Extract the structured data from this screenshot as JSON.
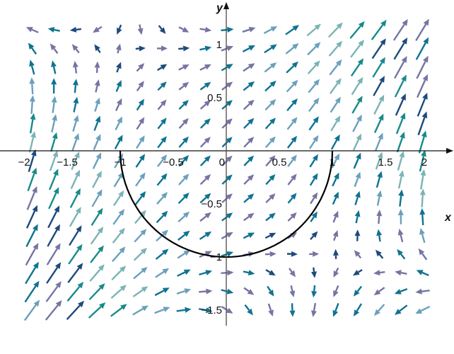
{
  "chart_data": {
    "type": "vector-field",
    "xlabel": "x",
    "ylabel": "y",
    "xlim": [
      -2.1,
      2.13
    ],
    "ylim": [
      -1.65,
      1.4
    ],
    "x_ticks": [
      {
        "value": -2,
        "label": "−2"
      },
      {
        "value": -1.5,
        "label": "−1.5"
      },
      {
        "value": -1,
        "label": "−1"
      },
      {
        "value": -0.5,
        "label": "−0.5"
      },
      {
        "value": 0,
        "label": "0"
      },
      {
        "value": 0.5,
        "label": "0.5"
      },
      {
        "value": 1,
        "label": "1"
      },
      {
        "value": 1.5,
        "label": "1.5"
      },
      {
        "value": 2,
        "label": "2"
      }
    ],
    "y_ticks": [
      {
        "value": 1,
        "label": "1"
      },
      {
        "value": 0.5,
        "label": "0.5"
      },
      {
        "value": -0.5,
        "label": "−0.5"
      },
      {
        "value": -1,
        "label": "−1"
      },
      {
        "value": -1.5,
        "label": "−1.5"
      }
    ],
    "field": {
      "u": "1 + x*y",
      "v": "1 + 0.8*x^2 - 0.7*y^2 + 1.1*x*y",
      "sample_x": {
        "start": -1.83,
        "end": 1.85,
        "count": 19
      },
      "sample_y": {
        "start": 1.14,
        "end": -1.5,
        "count": 16
      }
    },
    "curve": {
      "description_equation": "x^2 + y^2 = 1, y <= 0",
      "x_range": [
        -1,
        1
      ],
      "color": "#000000"
    },
    "colors": [
      "#1d4a7c",
      "#7474a4",
      "#0f7391",
      "#6aa0bc",
      "#7cb3b5",
      "#198a8a"
    ],
    "grid": false
  }
}
